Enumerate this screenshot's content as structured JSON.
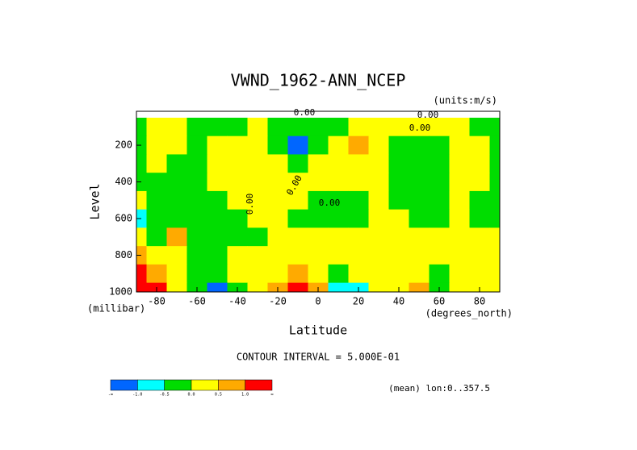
{
  "chart_data": {
    "type": "contour",
    "title": "VWND_1962-ANN_NCEP",
    "units_label": "(units:m/s)",
    "x_label": "Latitude",
    "x_units": "(degrees_north)",
    "y_label": "Level",
    "y_units": "(millibar)",
    "xlim": [
      -90,
      90
    ],
    "ylim": [
      1000,
      15
    ],
    "xticks": [
      -80,
      -60,
      -40,
      -20,
      0,
      20,
      40,
      60,
      80
    ],
    "yticks": [
      200,
      400,
      600,
      800,
      1000
    ],
    "x": [
      -90,
      -80,
      -70,
      -60,
      -50,
      -40,
      -30,
      -20,
      -10,
      0,
      10,
      20,
      30,
      40,
      50,
      60,
      70,
      80,
      90
    ],
    "levels_axis": [
      100,
      200,
      300,
      400,
      500,
      600,
      700,
      800,
      900,
      1000
    ],
    "z": [
      [
        -0.25,
        0.25,
        0.25,
        -0.25,
        -0.25,
        -0.25,
        0.25,
        -0.25,
        -0.25,
        -0.25,
        -0.25,
        0.25,
        0.25,
        0.25,
        0.25,
        0.25,
        0.25,
        -0.25,
        -0.25
      ],
      [
        -0.25,
        0.25,
        0.25,
        -0.25,
        0.25,
        0.25,
        0.25,
        -0.25,
        -1.25,
        -0.25,
        0.25,
        0.75,
        0.25,
        -0.25,
        -0.25,
        -0.25,
        0.25,
        0.25,
        -0.25
      ],
      [
        -0.25,
        0.25,
        -0.25,
        -0.25,
        0.25,
        0.25,
        0.25,
        0.25,
        -0.25,
        0.25,
        0.25,
        0.25,
        0.25,
        -0.25,
        -0.25,
        -0.25,
        0.25,
        0.25,
        -0.25
      ],
      [
        -0.25,
        -0.25,
        -0.25,
        -0.25,
        0.25,
        0.25,
        0.25,
        0.25,
        0.25,
        0.25,
        0.25,
        0.25,
        0.25,
        -0.25,
        -0.25,
        -0.25,
        0.25,
        0.25,
        -0.25
      ],
      [
        0.25,
        -0.25,
        -0.25,
        -0.25,
        -0.25,
        0.25,
        0.25,
        0.25,
        0.25,
        -0.25,
        -0.25,
        -0.25,
        0.25,
        -0.25,
        -0.25,
        -0.25,
        0.25,
        -0.25,
        -0.25
      ],
      [
        -0.75,
        -0.25,
        -0.25,
        -0.25,
        -0.25,
        -0.25,
        0.25,
        0.25,
        -0.25,
        -0.25,
        -0.25,
        -0.25,
        0.25,
        0.25,
        -0.25,
        -0.25,
        0.25,
        -0.25,
        -0.25
      ],
      [
        0.25,
        -0.25,
        0.75,
        -0.25,
        -0.25,
        -0.25,
        -0.25,
        0.25,
        0.25,
        0.25,
        0.25,
        0.25,
        0.25,
        0.25,
        0.25,
        0.25,
        0.25,
        0.25,
        0.25
      ],
      [
        0.75,
        0.25,
        0.25,
        -0.25,
        -0.25,
        0.25,
        0.25,
        0.25,
        0.25,
        0.25,
        0.25,
        0.25,
        0.25,
        0.25,
        0.25,
        0.25,
        0.25,
        0.25,
        0.25
      ],
      [
        1.25,
        0.75,
        0.25,
        -0.25,
        -0.25,
        0.25,
        0.25,
        0.25,
        0.75,
        0.25,
        -0.25,
        0.25,
        0.25,
        0.25,
        0.25,
        -0.25,
        0.25,
        0.25,
        0.25
      ],
      [
        1.25,
        1.25,
        0.25,
        -0.25,
        -1.25,
        -0.25,
        0.25,
        0.75,
        1.25,
        0.75,
        -0.75,
        -0.75,
        0.25,
        0.25,
        0.75,
        -0.25,
        0.25,
        0.25,
        0.25
      ]
    ],
    "levels": [
      -1.0,
      -0.5,
      0,
      0.5,
      1.0
    ],
    "colors": [
      "#0066ff",
      "#00ffff",
      "#00dd00",
      "#ffff00",
      "#ffaa00",
      "#ff0000"
    ],
    "colorbar_labels": [
      "-∞",
      "-1.0",
      "-0.5",
      "0.0",
      "0.5",
      "1.0",
      "∞"
    ],
    "contour_labels": [
      "0.00",
      "0.00",
      "0.00",
      "0.00",
      "0.00",
      "0.00"
    ],
    "contour_interval": "CONTOUR INTERVAL = 5.000E-01",
    "footnote": "(mean) lon:0..357.5"
  }
}
